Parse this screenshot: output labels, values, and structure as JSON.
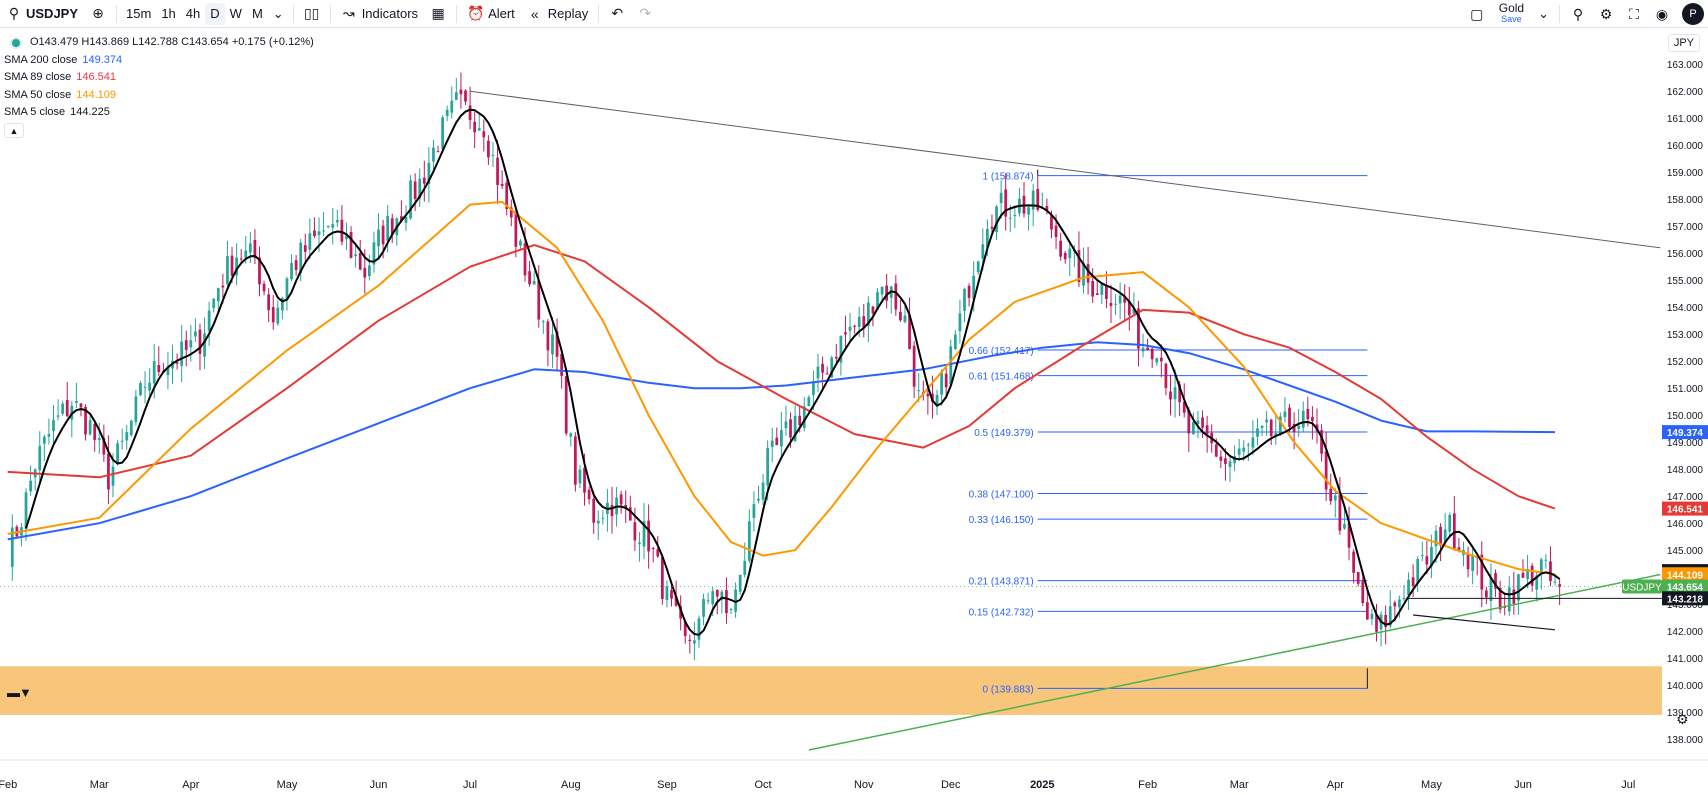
{
  "toolbar": {
    "symbol": "USDJPY",
    "intervals": [
      "15m",
      "1h",
      "4h",
      "D",
      "W",
      "M"
    ],
    "indicators_label": "Indicators",
    "alert_label": "Alert",
    "replay_label": "Replay",
    "layout_name": "Gold",
    "layout_status": "Save",
    "avatar": "P"
  },
  "legend": {
    "ohlc": "O143.479  H143.869  L142.788  C143.654  +0.175 (+0.12%)",
    "sma": [
      {
        "label": "SMA 200 close",
        "value": "149.374",
        "color": "#2962ff"
      },
      {
        "label": "SMA 89 close",
        "value": "146.541",
        "color": "#f23645"
      },
      {
        "label": "SMA 50 close",
        "value": "144.109",
        "color": "#ff9800"
      },
      {
        "label": "SMA 5 close",
        "value": "144.225",
        "color": "#131722"
      }
    ]
  },
  "currency": "JPY",
  "colors": {
    "up": "#26a69a",
    "down": "#c2185b",
    "sma200": "#2962ff",
    "sma89": "#e53935",
    "sma50": "#ff9800",
    "sma5": "#000000",
    "fib": "#2962ff",
    "zone": "#f7c06b",
    "trend_up": "#4caf50",
    "price_green": "#4caf50"
  },
  "chart_data": {
    "type": "candlestick",
    "symbol": "USDJPY",
    "timeframe": "D",
    "ylim": [
      137.6,
      163.6
    ],
    "y_ticks": [
      "163.000",
      "162.000",
      "161.000",
      "160.000",
      "159.000",
      "158.000",
      "157.000",
      "156.000",
      "155.000",
      "154.000",
      "153.000",
      "152.000",
      "151.000",
      "150.000",
      "149.000",
      "148.000",
      "147.000",
      "146.000",
      "145.000",
      "144.000",
      "143.000",
      "142.000",
      "141.000",
      "140.000",
      "139.000",
      "138.000"
    ],
    "x_ticks": [
      "Feb",
      "Mar",
      "Apr",
      "May",
      "Jun",
      "Jul",
      "Aug",
      "Sep",
      "Oct",
      "Nov",
      "Dec",
      "2025",
      "Feb",
      "Mar",
      "Apr",
      "May",
      "Jun",
      "Jul"
    ],
    "x_tick_index": [
      0,
      20,
      40,
      61,
      81,
      101,
      123,
      144,
      165,
      187,
      206,
      226,
      249,
      269,
      290,
      311,
      331,
      354
    ],
    "close_path": [
      [
        0,
        144.9
      ],
      [
        3,
        146.2
      ],
      [
        6,
        148.2
      ],
      [
        10,
        149.6
      ],
      [
        14,
        150.5
      ],
      [
        18,
        149.6
      ],
      [
        22,
        147.7
      ],
      [
        26,
        149.2
      ],
      [
        30,
        151.2
      ],
      [
        34,
        152.0
      ],
      [
        38,
        152.2
      ],
      [
        42,
        152.8
      ],
      [
        46,
        154.8
      ],
      [
        50,
        156.0
      ],
      [
        54,
        155.8
      ],
      [
        58,
        153.6
      ],
      [
        62,
        155.5
      ],
      [
        66,
        156.3
      ],
      [
        70,
        157.0
      ],
      [
        74,
        156.4
      ],
      [
        78,
        155.3
      ],
      [
        82,
        156.8
      ],
      [
        86,
        157.6
      ],
      [
        90,
        158.6
      ],
      [
        94,
        160.2
      ],
      [
        98,
        161.5
      ],
      [
        101,
        161.2
      ],
      [
        104,
        160.8
      ],
      [
        108,
        158.2
      ],
      [
        112,
        156.0
      ],
      [
        116,
        154.0
      ],
      [
        120,
        152.0
      ],
      [
        124,
        147.8
      ],
      [
        128,
        146.3
      ],
      [
        132,
        146.8
      ],
      [
        136,
        146.1
      ],
      [
        140,
        145.4
      ],
      [
        144,
        143.2
      ],
      [
        148,
        141.5
      ],
      [
        151,
        142.2
      ],
      [
        154,
        143.8
      ],
      [
        157,
        142.6
      ],
      [
        160,
        143.8
      ],
      [
        163,
        146.8
      ],
      [
        166,
        148.2
      ],
      [
        169,
        149.0
      ],
      [
        172,
        149.8
      ],
      [
        175,
        150.6
      ],
      [
        178,
        151.6
      ],
      [
        181,
        152.5
      ],
      [
        184,
        153.2
      ],
      [
        187,
        153.4
      ],
      [
        190,
        154.8
      ],
      [
        193,
        154.5
      ],
      [
        196,
        153.5
      ],
      [
        199,
        150.6
      ],
      [
        202,
        150.0
      ],
      [
        205,
        151.6
      ],
      [
        208,
        153.5
      ],
      [
        211,
        155.6
      ],
      [
        214,
        157.4
      ],
      [
        217,
        157.7
      ],
      [
        221,
        157.8
      ],
      [
        225,
        157.7
      ],
      [
        228,
        157.0
      ],
      [
        232,
        155.8
      ],
      [
        236,
        154.9
      ],
      [
        240,
        154.7
      ],
      [
        244,
        154.1
      ],
      [
        248,
        152.6
      ],
      [
        251,
        152.7
      ],
      [
        254,
        150.9
      ],
      [
        258,
        149.4
      ],
      [
        262,
        149.1
      ],
      [
        266,
        148.2
      ],
      [
        270,
        148.6
      ],
      [
        274,
        149.2
      ],
      [
        278,
        149.4
      ],
      [
        281,
        149.9
      ],
      [
        285,
        149.5
      ],
      [
        288,
        147.6
      ],
      [
        291,
        146.2
      ],
      [
        294,
        144.0
      ],
      [
        297,
        142.5
      ],
      [
        299,
        141.9
      ],
      [
        302,
        142.7
      ],
      [
        305,
        143.6
      ],
      [
        308,
        144.2
      ],
      [
        311,
        144.9
      ],
      [
        314,
        146.0
      ],
      [
        317,
        145.4
      ],
      [
        320,
        144.6
      ],
      [
        323,
        143.6
      ],
      [
        326,
        143.2
      ],
      [
        329,
        143.6
      ],
      [
        332,
        144.0
      ],
      [
        335,
        144.4
      ],
      [
        337,
        143.8
      ],
      [
        339,
        143.65
      ]
    ],
    "sma5_last": 144.225,
    "sma50": [
      [
        0,
        145.6
      ],
      [
        20,
        146.2
      ],
      [
        40,
        149.5
      ],
      [
        61,
        152.4
      ],
      [
        81,
        154.8
      ],
      [
        101,
        157.8
      ],
      [
        108,
        157.9
      ],
      [
        120,
        156.2
      ],
      [
        130,
        153.5
      ],
      [
        140,
        150.0
      ],
      [
        150,
        147.0
      ],
      [
        158,
        145.3
      ],
      [
        165,
        144.8
      ],
      [
        172,
        145.0
      ],
      [
        180,
        146.6
      ],
      [
        190,
        148.8
      ],
      [
        200,
        150.8
      ],
      [
        210,
        152.8
      ],
      [
        220,
        154.2
      ],
      [
        235,
        155.1
      ],
      [
        248,
        155.3
      ],
      [
        258,
        154.0
      ],
      [
        270,
        151.8
      ],
      [
        281,
        149.0
      ],
      [
        290,
        147.2
      ],
      [
        300,
        146.0
      ],
      [
        310,
        145.4
      ],
      [
        320,
        144.8
      ],
      [
        330,
        144.3
      ],
      [
        338,
        144.109
      ]
    ],
    "sma89": [
      [
        0,
        147.9
      ],
      [
        20,
        147.7
      ],
      [
        40,
        148.5
      ],
      [
        61,
        151.0
      ],
      [
        81,
        153.5
      ],
      [
        101,
        155.5
      ],
      [
        115,
        156.3
      ],
      [
        126,
        155.7
      ],
      [
        140,
        154.0
      ],
      [
        155,
        152.0
      ],
      [
        170,
        150.6
      ],
      [
        185,
        149.3
      ],
      [
        200,
        148.8
      ],
      [
        210,
        149.6
      ],
      [
        220,
        151.0
      ],
      [
        235,
        152.6
      ],
      [
        248,
        153.9
      ],
      [
        258,
        153.8
      ],
      [
        270,
        153.0
      ],
      [
        280,
        152.5
      ],
      [
        290,
        151.6
      ],
      [
        300,
        150.6
      ],
      [
        310,
        149.2
      ],
      [
        320,
        148.0
      ],
      [
        330,
        147.0
      ],
      [
        338,
        146.541
      ]
    ],
    "sma200": [
      [
        0,
        145.4
      ],
      [
        20,
        146.0
      ],
      [
        40,
        147.0
      ],
      [
        61,
        148.4
      ],
      [
        81,
        149.7
      ],
      [
        101,
        151.0
      ],
      [
        115,
        151.7
      ],
      [
        126,
        151.6
      ],
      [
        140,
        151.2
      ],
      [
        150,
        151.0
      ],
      [
        160,
        151.0
      ],
      [
        170,
        151.1
      ],
      [
        185,
        151.4
      ],
      [
        200,
        151.7
      ],
      [
        215,
        152.2
      ],
      [
        226,
        152.5
      ],
      [
        238,
        152.7
      ],
      [
        248,
        152.6
      ],
      [
        258,
        152.3
      ],
      [
        270,
        151.7
      ],
      [
        280,
        151.1
      ],
      [
        290,
        150.5
      ],
      [
        300,
        149.8
      ],
      [
        310,
        149.4
      ],
      [
        320,
        149.4
      ],
      [
        338,
        149.374
      ]
    ],
    "fib_levels": [
      {
        "label": "1 (158.874)",
        "value": 158.874
      },
      {
        "label": "0.66 (152.417)",
        "value": 152.417
      },
      {
        "label": "0.61 (151.468)",
        "value": 151.468
      },
      {
        "label": "0.5 (149.379)",
        "value": 149.379
      },
      {
        "label": "0.38 (147.100)",
        "value": 147.1
      },
      {
        "label": "0.33 (146.150)",
        "value": 146.15
      },
      {
        "label": "0.21 (143.871)",
        "value": 143.871
      },
      {
        "label": "0.15 (142.732)",
        "value": 142.732
      },
      {
        "label": "0 (139.883)",
        "value": 139.883
      }
    ],
    "fib_x_range": [
      218,
      297
    ],
    "support_zone": [
      138.9,
      140.7
    ],
    "trend_down": [
      [
        101,
        162.0
      ],
      [
        361,
        156.2
      ]
    ],
    "trend_up": [
      [
        175,
        137.6
      ],
      [
        361,
        144.1
      ]
    ],
    "support_line": [
      [
        307,
        142.6
      ],
      [
        338,
        142.05
      ]
    ],
    "horizontal_line": {
      "y": 143.218,
      "from": 306
    },
    "price_labels": [
      {
        "text": "149.374",
        "value": 149.374,
        "bg": "#2962ff",
        "fg": "#ffffff"
      },
      {
        "text": "146.541",
        "value": 146.541,
        "bg": "#e53935",
        "fg": "#ffffff"
      },
      {
        "text": "144.225",
        "value": 144.225,
        "bg": "#131722",
        "fg": "#ffffff"
      },
      {
        "text": "144.109",
        "value": 144.109,
        "bg": "#ff9800",
        "fg": "#ffffff"
      },
      {
        "text": "143.654",
        "value": 143.654,
        "bg": "#4caf50",
        "fg": "#ffffff"
      },
      {
        "text": "143.218",
        "value": 143.218,
        "bg": "#131722",
        "fg": "#ffffff"
      }
    ],
    "symbol_tag": "USDJPY"
  }
}
